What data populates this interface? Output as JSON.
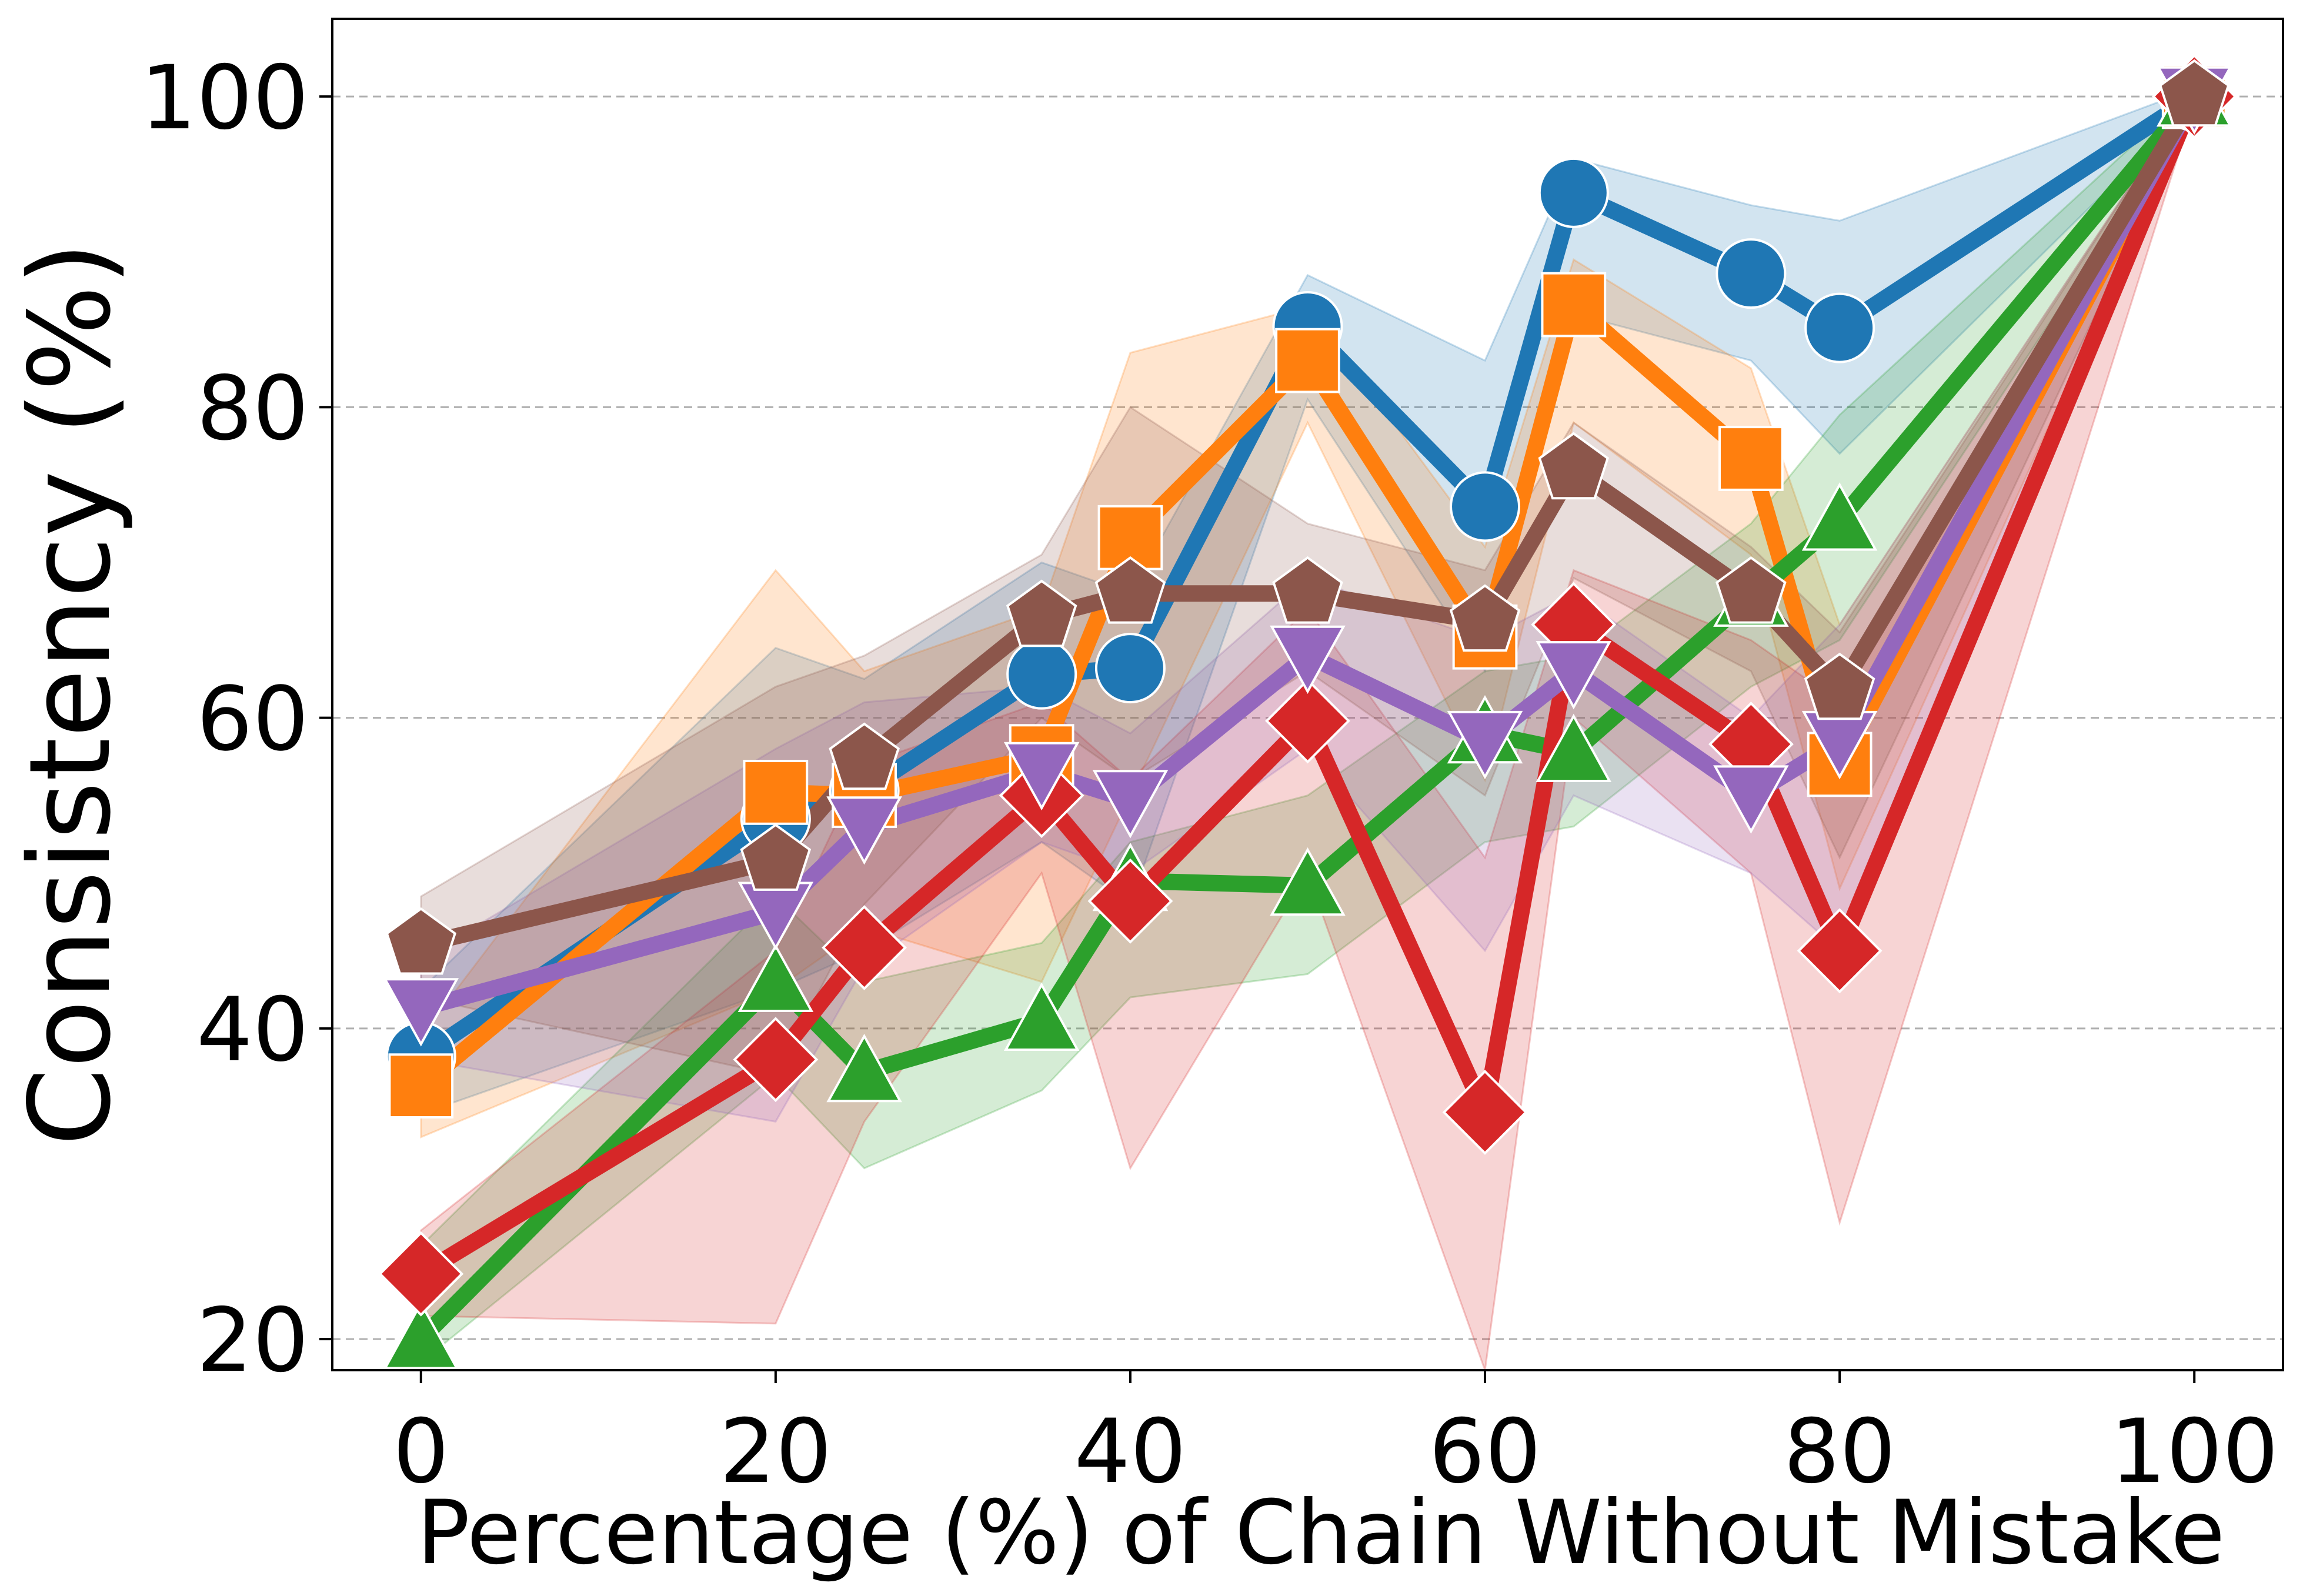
{
  "chart_data": {
    "type": "line",
    "title": "",
    "xlabel": "Percentage (%) of Chain Without Mistake",
    "ylabel": "Consistency (%)",
    "xlim": [
      -5,
      105
    ],
    "ylim": [
      18,
      105
    ],
    "xticks": [
      0,
      20,
      40,
      60,
      80,
      100
    ],
    "yticks": [
      20,
      40,
      60,
      80,
      100
    ],
    "grid": "y-dashed",
    "legend": "none",
    "series": [
      {
        "name": "blue-circle",
        "color": "#1f77b4",
        "marker": "circle",
        "x": [
          0,
          20,
          25,
          35,
          40,
          50,
          60,
          65,
          75,
          80,
          100
        ],
        "y": [
          38.2,
          53.5,
          55.3,
          62.8,
          63.2,
          85.2,
          73.6,
          93.8,
          88.6,
          85.1,
          100
        ],
        "lower": [
          34.5,
          42.5,
          45.0,
          52.0,
          48.0,
          80.5,
          63.0,
          86.0,
          83.0,
          77.0,
          99.5
        ],
        "upper": [
          42.5,
          64.5,
          62.5,
          70.0,
          68.0,
          88.5,
          83.0,
          96.0,
          93.0,
          92.0,
          100.5
        ]
      },
      {
        "name": "orange-square",
        "color": "#ff7f0e",
        "marker": "square",
        "x": [
          0,
          20,
          25,
          35,
          40,
          50,
          60,
          65,
          75,
          80,
          100
        ],
        "y": [
          36.3,
          55.2,
          55.0,
          57.5,
          71.6,
          83.0,
          65.2,
          86.6,
          76.7,
          57.0,
          100
        ],
        "lower": [
          33.0,
          42.5,
          46.5,
          43.0,
          55.0,
          79.0,
          56.0,
          79.0,
          70.5,
          49.0,
          99.5
        ],
        "upper": [
          39.5,
          69.5,
          63.0,
          67.0,
          83.5,
          86.5,
          71.0,
          89.5,
          82.5,
          66.0,
          100.5
        ]
      },
      {
        "name": "green-triangle-up",
        "color": "#2ca02c",
        "marker": "triangle-up",
        "x": [
          0,
          20,
          25,
          35,
          40,
          50,
          60,
          65,
          75,
          80,
          100
        ],
        "y": [
          20.0,
          43.0,
          37.2,
          40.5,
          49.5,
          49.2,
          59.0,
          57.8,
          67.8,
          72.7,
          100
        ],
        "lower": [
          18.5,
          37.0,
          31.0,
          36.0,
          42.0,
          43.5,
          52.0,
          53.0,
          62.0,
          65.0,
          99.5
        ],
        "upper": [
          26.0,
          48.5,
          43.0,
          45.5,
          52.0,
          55.0,
          63.0,
          64.0,
          72.5,
          79.5,
          100.5
        ]
      },
      {
        "name": "red-diamond",
        "color": "#d62728",
        "marker": "diamond",
        "x": [
          0,
          20,
          25,
          35,
          40,
          50,
          60,
          65,
          75,
          80,
          100
        ],
        "y": [
          24.2,
          38.0,
          45.2,
          55.0,
          48.2,
          59.8,
          34.6,
          66.0,
          58.3,
          45.0,
          100
        ],
        "lower": [
          21.5,
          21.0,
          34.0,
          50.0,
          31.0,
          50.0,
          18.0,
          60.0,
          50.0,
          27.5,
          99.5
        ],
        "upper": [
          27.0,
          45.0,
          57.0,
          61.0,
          56.0,
          67.0,
          51.0,
          69.5,
          65.0,
          61.0,
          100.5
        ]
      },
      {
        "name": "purple-triangle-down",
        "color": "#9467bd",
        "marker": "triangle-down",
        "x": [
          0,
          20,
          25,
          35,
          40,
          50,
          60,
          65,
          75,
          80,
          100
        ],
        "y": [
          41.3,
          47.5,
          53.0,
          56.5,
          54.7,
          64.0,
          58.5,
          63.0,
          55.0,
          58.5,
          100
        ],
        "lower": [
          38.0,
          34.0,
          44.0,
          52.0,
          50.0,
          58.0,
          45.0,
          55.0,
          50.0,
          45.0,
          99.5
        ],
        "upper": [
          44.5,
          58.0,
          61.0,
          62.0,
          59.0,
          69.0,
          65.0,
          68.0,
          60.0,
          66.0,
          100.5
        ]
      },
      {
        "name": "brown-pentagon",
        "color": "#8c564b",
        "marker": "pentagon",
        "x": [
          0,
          20,
          25,
          35,
          40,
          50,
          60,
          65,
          75,
          80,
          100
        ],
        "y": [
          45.4,
          50.8,
          57.3,
          66.5,
          68.0,
          68.0,
          66.2,
          76.0,
          68.0,
          61.8,
          100
        ],
        "lower": [
          42.0,
          37.0,
          48.0,
          60.0,
          56.0,
          63.0,
          55.0,
          69.0,
          63.0,
          51.0,
          99.5
        ],
        "upper": [
          48.5,
          62.0,
          64.0,
          70.5,
          80.0,
          72.5,
          69.5,
          79.0,
          71.0,
          65.5,
          100.5
        ]
      }
    ]
  }
}
